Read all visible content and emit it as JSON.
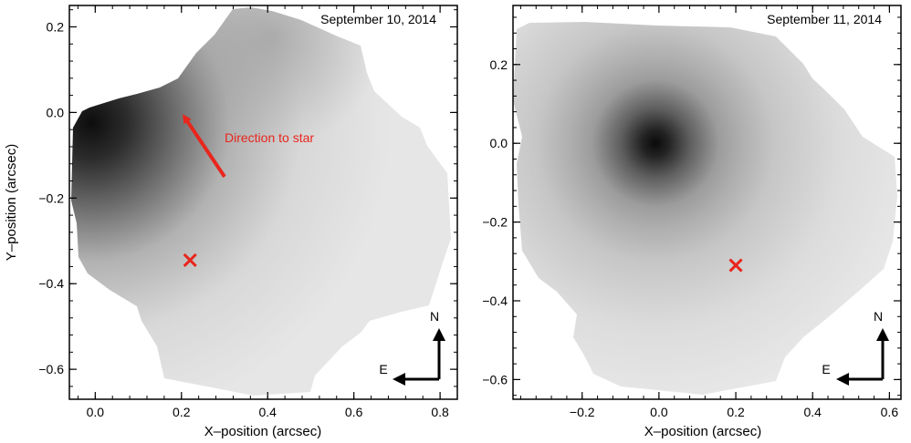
{
  "figure": {
    "panels": [
      {
        "title": "September 10, 2014",
        "xlabel": "X–position (arcsec)",
        "ylabel": "Y–position (arcsec)",
        "compass": {
          "north": "N",
          "east": "E"
        },
        "annotation": {
          "text": "Direction to star",
          "color": "#e8261d"
        },
        "marker_color": "#e8261d"
      },
      {
        "title": "September 11, 2014",
        "xlabel": "X–position (arcsec)",
        "ylabel": "",
        "compass": {
          "north": "N",
          "east": "E"
        },
        "marker_color": "#e8261d"
      }
    ]
  },
  "chart_data": [
    {
      "type": "heatmap",
      "title": "September 10, 2014",
      "xlabel": "X–position (arcsec)",
      "ylabel": "Y–position (arcsec)",
      "xlim": [
        -0.06,
        0.84
      ],
      "ylim": [
        -0.67,
        0.25
      ],
      "xticks": [
        0.0,
        0.2,
        0.4,
        0.6,
        0.8
      ],
      "yticks": [
        -0.6,
        -0.4,
        -0.2,
        0.0,
        0.2
      ],
      "xtick_labels": [
        "0.0",
        "0.2",
        "0.4",
        "0.6",
        "0.8"
      ],
      "ytick_labels": [
        "−0.6",
        "−0.4",
        "−0.2",
        "0.0",
        "0.2"
      ],
      "colormap": "grayscale (dark = high intensity)",
      "brightest_region": {
        "x": 0.0,
        "y": -0.03
      },
      "marker": {
        "symbol": "x",
        "x": 0.22,
        "y": -0.345
      },
      "arrow": {
        "label": "Direction to star",
        "from": {
          "x": 0.3,
          "y": -0.15
        },
        "to": {
          "x": 0.2,
          "y": 0.0
        }
      }
    },
    {
      "type": "heatmap",
      "title": "September 11, 2014",
      "xlabel": "X–position (arcsec)",
      "ylabel": "",
      "xlim": [
        -0.38,
        0.63
      ],
      "ylim": [
        -0.65,
        0.35
      ],
      "xticks": [
        -0.2,
        0.0,
        0.2,
        0.4,
        0.6
      ],
      "yticks": [
        -0.6,
        -0.4,
        -0.2,
        0.0,
        0.2
      ],
      "xtick_labels": [
        "−0.2",
        "0.0",
        "0.2",
        "0.4",
        "0.6"
      ],
      "ytick_labels": [
        "−0.6",
        "−0.4",
        "−0.2",
        "0.0",
        "0.2"
      ],
      "colormap": "grayscale (dark = high intensity)",
      "brightest_region": {
        "x": 0.0,
        "y": 0.0
      },
      "marker": {
        "symbol": "x",
        "x": 0.2,
        "y": -0.31
      }
    }
  ]
}
